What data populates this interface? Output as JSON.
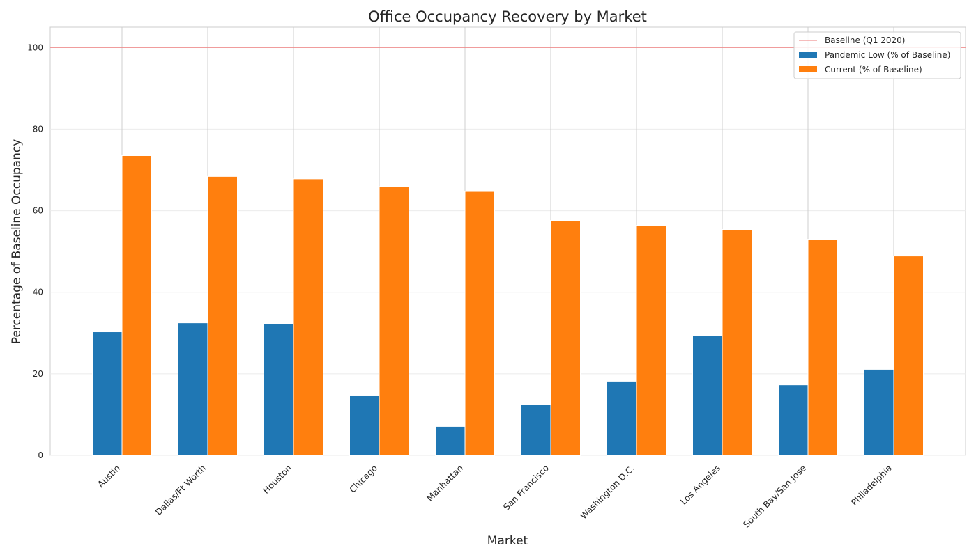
{
  "chart_data": {
    "type": "bar",
    "title": "Office Occupancy Recovery by Market",
    "xlabel": "Market",
    "ylabel": "Percentage of Baseline Occupancy",
    "ylim": [
      0,
      105
    ],
    "yticks": [
      0,
      20,
      40,
      60,
      80,
      100
    ],
    "categories": [
      "Austin",
      "Dallas/Ft Worth",
      "Houston",
      "Chicago",
      "Manhattan",
      "San Francisco",
      "Washington D.C.",
      "Los Angeles",
      "South Bay/San Jose",
      "Philadelphia"
    ],
    "series": [
      {
        "name": "Pandemic Low (% of Baseline)",
        "color": "#1f77b4",
        "values": [
          30.3,
          32.5,
          32.2,
          14.6,
          7.1,
          12.5,
          18.2,
          29.3,
          17.3,
          21.1
        ]
      },
      {
        "name": "Current (% of Baseline)",
        "color": "#ff7f0e",
        "values": [
          73.5,
          68.4,
          67.8,
          65.9,
          64.7,
          57.6,
          56.4,
          55.4,
          53.0,
          48.9
        ]
      }
    ],
    "reference_line": {
      "name": "Baseline (Q1 2020)",
      "value": 100,
      "color": "#f08080"
    },
    "grid": true,
    "legend_position": "top-right"
  }
}
